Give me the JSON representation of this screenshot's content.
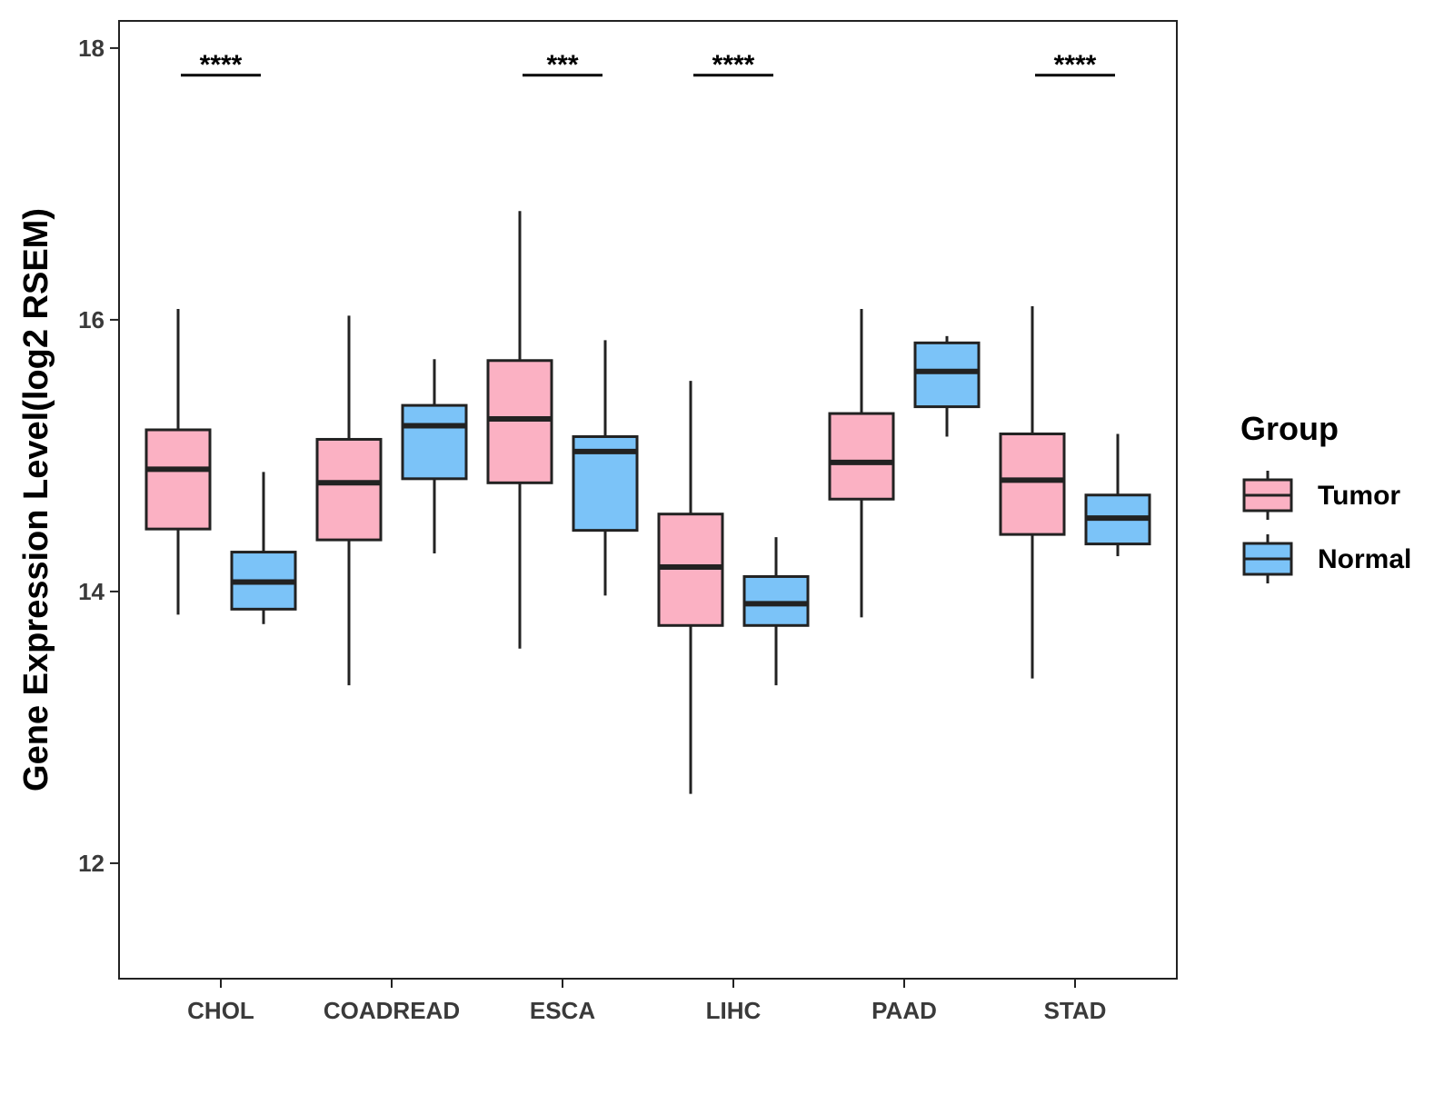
{
  "chart_data": {
    "type": "box",
    "ylabel": "Gene Expression Level(log2 RSEM)",
    "xlabel": "",
    "ylim": [
      11.15,
      18.2
    ],
    "yticks": [
      12,
      14,
      16,
      18
    ],
    "grid": false,
    "categories": [
      "CHOL",
      "COADREAD",
      "ESCA",
      "LIHC",
      "PAAD",
      "STAD"
    ],
    "legend": {
      "title": "Group",
      "position": "right",
      "entries": [
        {
          "name": "Tumor",
          "color": "#fbb1c3"
        },
        {
          "name": "Normal",
          "color": "#7bc3f8"
        }
      ]
    },
    "series": [
      {
        "name": "Tumor",
        "color": "#fbb1c3",
        "boxes": [
          {
            "min": 13.83,
            "q1": 14.46,
            "median": 14.9,
            "q3": 15.19,
            "max": 16.08
          },
          {
            "min": 13.31,
            "q1": 14.38,
            "median": 14.8,
            "q3": 15.12,
            "max": 16.03
          },
          {
            "min": 13.58,
            "q1": 14.8,
            "median": 15.27,
            "q3": 15.7,
            "max": 16.8
          },
          {
            "min": 12.51,
            "q1": 13.75,
            "median": 14.18,
            "q3": 14.57,
            "max": 15.55
          },
          {
            "min": 13.81,
            "q1": 14.68,
            "median": 14.95,
            "q3": 15.31,
            "max": 16.08
          },
          {
            "min": 13.36,
            "q1": 14.42,
            "median": 14.82,
            "q3": 15.16,
            "max": 16.1
          }
        ]
      },
      {
        "name": "Normal",
        "color": "#7bc3f8",
        "boxes": [
          {
            "min": 13.76,
            "q1": 13.87,
            "median": 14.07,
            "q3": 14.29,
            "max": 14.88
          },
          {
            "min": 14.28,
            "q1": 14.83,
            "median": 15.22,
            "q3": 15.37,
            "max": 15.71
          },
          {
            "min": 13.97,
            "q1": 14.45,
            "median": 15.03,
            "q3": 15.14,
            "max": 15.85
          },
          {
            "min": 13.31,
            "q1": 13.75,
            "median": 13.91,
            "q3": 14.11,
            "max": 14.4
          },
          {
            "min": 15.14,
            "q1": 15.36,
            "median": 15.62,
            "q3": 15.83,
            "max": 15.88
          },
          {
            "min": 14.26,
            "q1": 14.35,
            "median": 14.54,
            "q3": 14.71,
            "max": 15.16
          }
        ]
      }
    ],
    "significance": [
      {
        "category": "CHOL",
        "label": "****",
        "y": 17.8
      },
      {
        "category": "ESCA",
        "label": "***",
        "y": 17.8
      },
      {
        "category": "LIHC",
        "label": "****",
        "y": 17.8
      },
      {
        "category": "STAD",
        "label": "****",
        "y": 17.8
      }
    ]
  }
}
